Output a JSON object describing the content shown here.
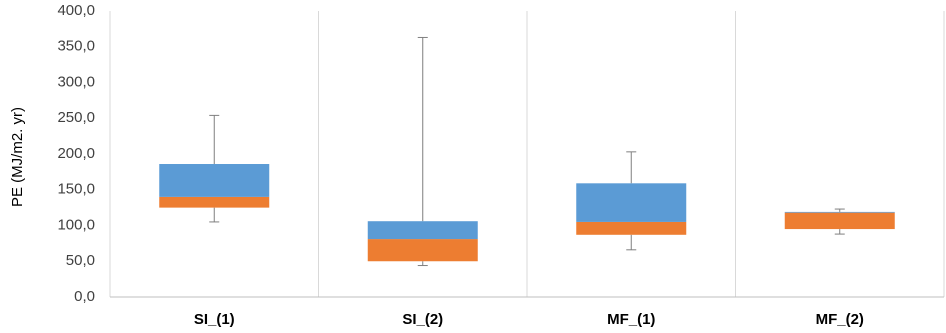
{
  "chart_data": {
    "type": "boxplot",
    "title": "",
    "xlabel": "",
    "ylabel": "PE (MJ/m2. yr)",
    "ylim": [
      0,
      400
    ],
    "ytick_step": 50,
    "ytick_labels": [
      "0,0",
      "50,0",
      "100,0",
      "150,0",
      "200,0",
      "250,0",
      "300,0",
      "350,0",
      "400,0"
    ],
    "grid": "vertical category separators",
    "categories": [
      "SI_(1)",
      "SI_(2)",
      "MF_(1)",
      "MF_(2)"
    ],
    "boxes": [
      {
        "category": "SI_(1)",
        "min": 105,
        "q1": 125,
        "median": 140,
        "q3": 186,
        "max": 254
      },
      {
        "category": "SI_(2)",
        "min": 44,
        "q1": 50,
        "median": 81,
        "q3": 106,
        "max": 363
      },
      {
        "category": "MF_(1)",
        "min": 66,
        "q1": 87,
        "median": 105,
        "q3": 159,
        "max": 203
      },
      {
        "category": "MF_(2)",
        "min": 88,
        "q1": 95,
        "median": 118,
        "q3": 119,
        "max": 123
      }
    ],
    "colors": {
      "lower_box": "#ED7D31",
      "upper_box": "#5B9BD5",
      "whisker": "#7F7F7F",
      "axis": "#BFBFBF"
    }
  }
}
